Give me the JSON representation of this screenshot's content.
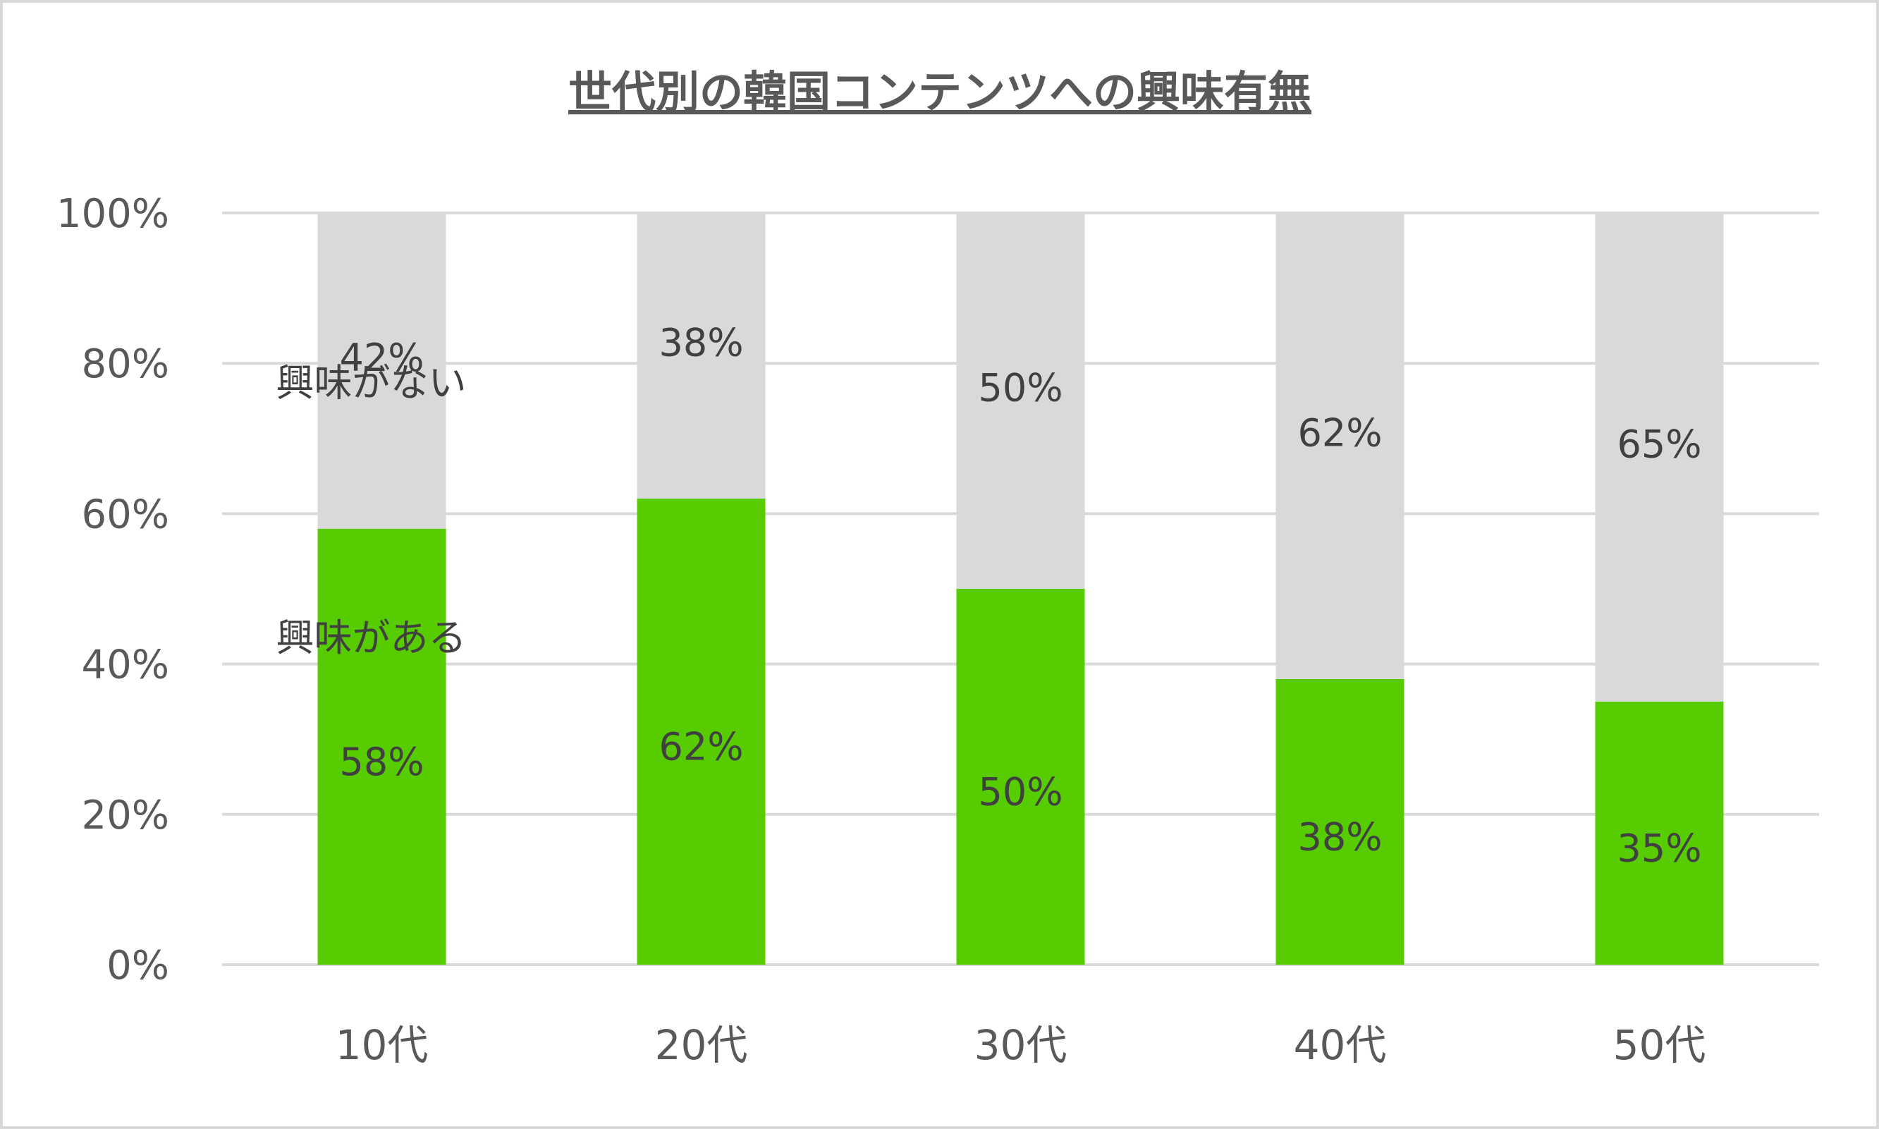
{
  "chart_data": {
    "type": "bar",
    "stacked": true,
    "title": "世代別の韓国コンテンツへの興味有無",
    "categories": [
      "10代",
      "20代",
      "30代",
      "40代",
      "50代"
    ],
    "ylim": [
      0,
      100
    ],
    "yticks": [
      "0%",
      "20%",
      "40%",
      "60%",
      "80%",
      "100%"
    ],
    "grid": true,
    "series": [
      {
        "name": "興味がある",
        "values": [
          58,
          62,
          50,
          38,
          35
        ],
        "labels": [
          "58%",
          "62%",
          "50%",
          "38%",
          "35%"
        ],
        "color": "#57cc00"
      },
      {
        "name": "興味がない",
        "values": [
          42,
          38,
          50,
          62,
          65
        ],
        "labels": [
          "42%",
          "38%",
          "50%",
          "62%",
          "65%"
        ],
        "color": "#d9d9d9"
      }
    ]
  }
}
